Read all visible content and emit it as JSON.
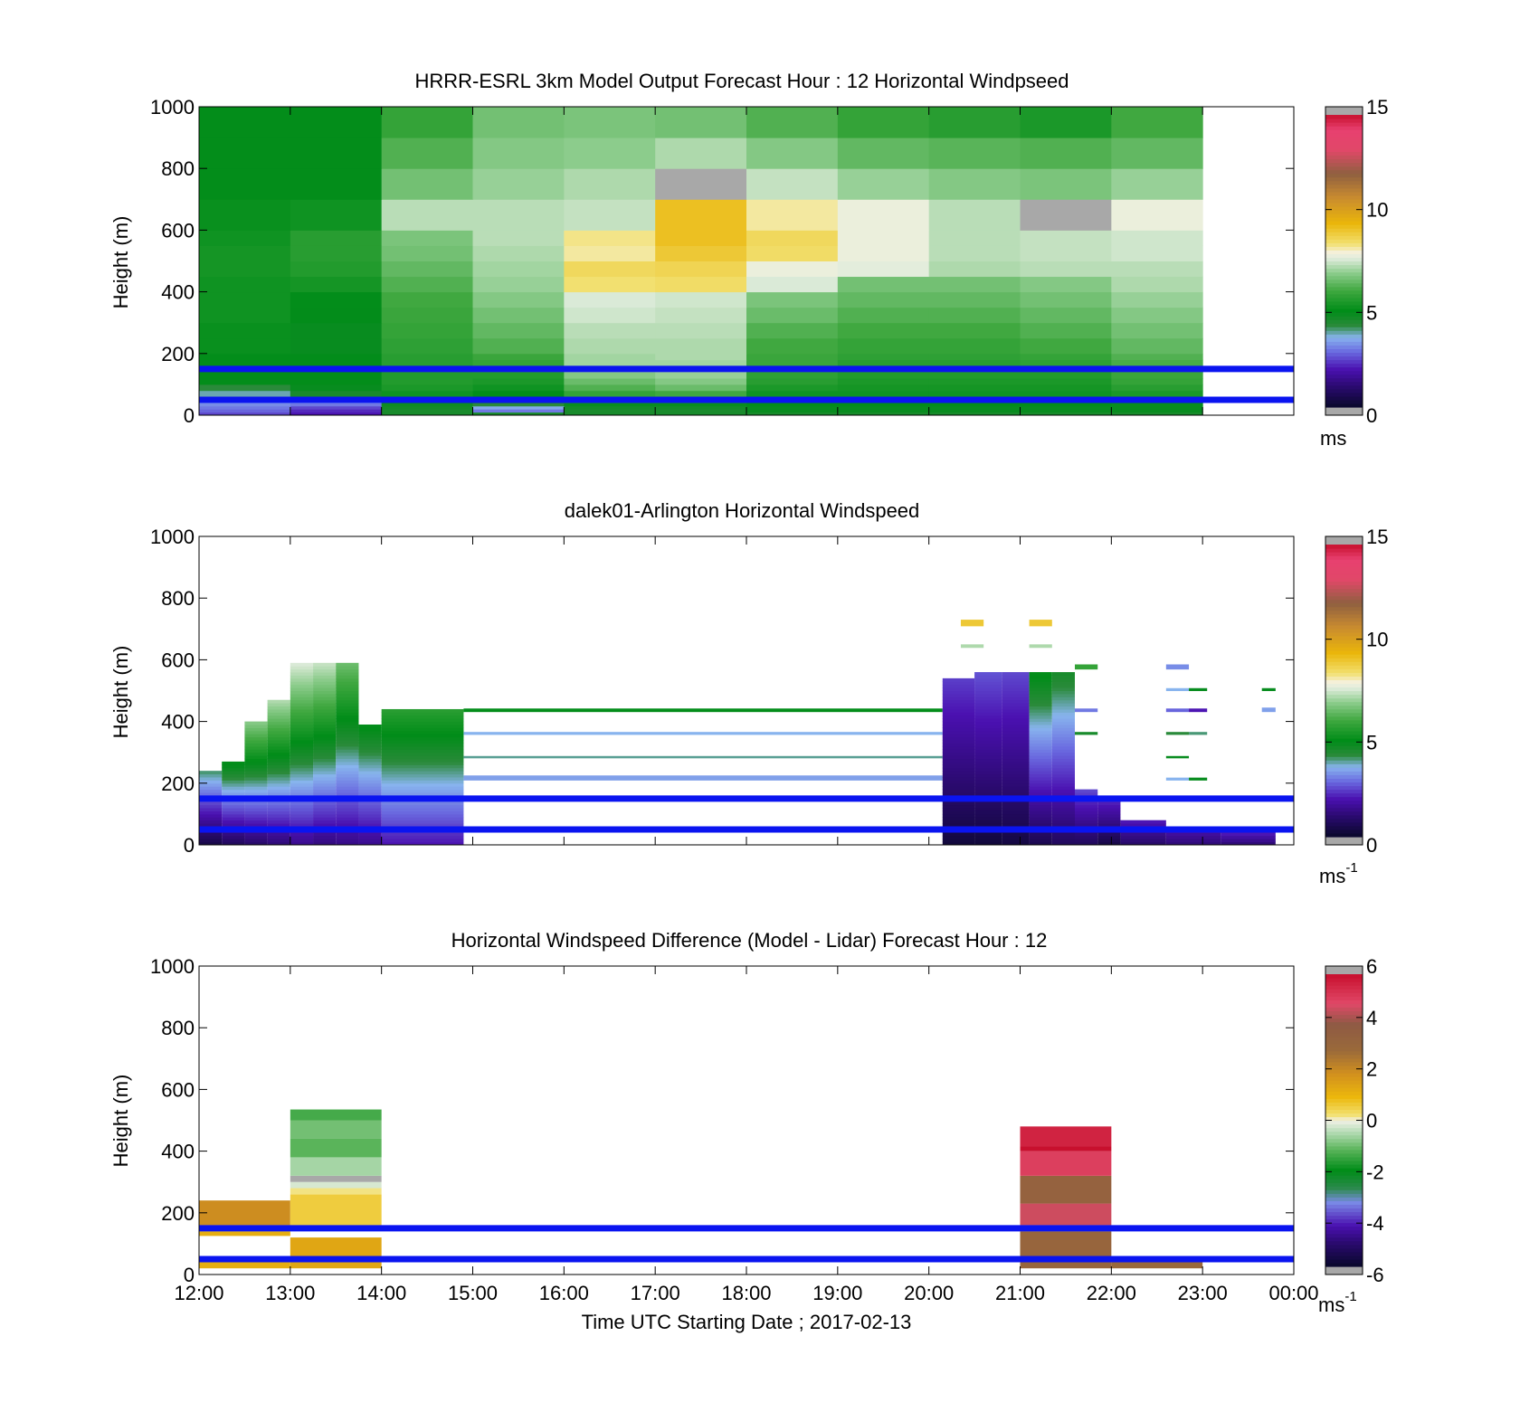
{
  "figure": {
    "xlabel": "Time UTC  Starting Date ; 2017-02-13"
  },
  "chart_data": [
    {
      "type": "heatmap",
      "title": "HRRR-ESRL 3km Model Output   Forecast Hour : 12 Horizontal Windpseed",
      "xlabel": "",
      "ylabel": "Height (m)",
      "xlim": [
        "12:00",
        "00:00"
      ],
      "ylim": [
        0,
        1000
      ],
      "yticks": [
        0,
        200,
        400,
        600,
        800,
        1000
      ],
      "colorbar": {
        "ticks": [
          0,
          5,
          10,
          15
        ],
        "range": [
          0,
          15
        ],
        "unit": "ms",
        "unit_sup": "",
        "palette": "wind"
      },
      "reference_lines_m": [
        50,
        150
      ],
      "line_color": "#0a14f0",
      "x_hours": [
        12,
        13,
        14,
        15,
        16,
        17,
        18,
        19,
        20,
        21,
        22
      ],
      "bin_top_m": [
        10,
        20,
        30,
        40,
        60,
        80,
        100,
        120,
        140,
        160,
        180,
        200,
        250,
        300,
        350,
        400,
        450,
        500,
        550,
        600,
        700,
        800,
        900,
        1000
      ],
      "values": [
        [
          2.5,
          2.0,
          4.5,
          4.5,
          4.5,
          4.5,
          4.5,
          4.5,
          4.5,
          4.5,
          4.5
        ],
        [
          2.8,
          2.2,
          4.5,
          3.0,
          4.5,
          4.5,
          4.8,
          4.8,
          4.8,
          4.8,
          4.8
        ],
        [
          3.0,
          2.5,
          4.6,
          3.5,
          4.6,
          4.6,
          4.8,
          4.8,
          4.8,
          4.8,
          4.8
        ],
        [
          3.2,
          3.0,
          4.7,
          4.2,
          4.8,
          4.8,
          4.9,
          4.9,
          4.9,
          4.9,
          4.8
        ],
        [
          3.5,
          3.6,
          4.9,
          4.5,
          5.3,
          5.3,
          5.0,
          5.0,
          5.0,
          5.0,
          5.0
        ],
        [
          3.8,
          4.5,
          5.2,
          5.0,
          5.8,
          6.0,
          5.2,
          5.2,
          5.2,
          5.2,
          5.4
        ],
        [
          4.2,
          4.8,
          5.4,
          5.2,
          6.2,
          6.5,
          5.4,
          5.3,
          5.3,
          5.3,
          5.6
        ],
        [
          5.0,
          5.0,
          5.5,
          5.4,
          6.5,
          6.8,
          5.6,
          5.4,
          5.4,
          5.4,
          5.8
        ],
        [
          5.0,
          5.0,
          5.5,
          5.5,
          6.8,
          7.0,
          5.7,
          5.5,
          5.5,
          5.5,
          5.9
        ],
        [
          5.0,
          5.0,
          5.6,
          5.7,
          7.0,
          7.1,
          5.8,
          5.6,
          5.6,
          5.6,
          6.0
        ],
        [
          5.0,
          4.9,
          5.6,
          5.8,
          7.1,
          7.1,
          5.9,
          5.6,
          5.6,
          5.7,
          6.1
        ],
        [
          5.0,
          4.9,
          5.6,
          5.9,
          7.1,
          7.2,
          5.9,
          5.7,
          5.7,
          5.8,
          6.2
        ],
        [
          5.1,
          4.8,
          5.7,
          6.2,
          7.2,
          7.2,
          6.0,
          5.8,
          5.8,
          6.0,
          6.4
        ],
        [
          5.1,
          4.8,
          5.8,
          6.4,
          7.3,
          7.3,
          6.2,
          6.0,
          6.0,
          6.2,
          6.6
        ],
        [
          5.2,
          4.9,
          5.9,
          6.6,
          7.5,
          7.4,
          6.5,
          6.2,
          6.2,
          6.4,
          6.8
        ],
        [
          5.2,
          5.0,
          6.0,
          6.8,
          7.6,
          7.5,
          6.7,
          6.4,
          6.4,
          6.6,
          7.0
        ],
        [
          5.2,
          5.3,
          6.2,
          7.0,
          8.4,
          8.5,
          7.6,
          6.6,
          6.6,
          6.8,
          7.2
        ],
        [
          5.3,
          5.5,
          6.4,
          7.1,
          8.6,
          8.7,
          7.8,
          7.7,
          7.2,
          7.3,
          7.3
        ],
        [
          5.3,
          5.6,
          6.6,
          7.2,
          8.2,
          9.0,
          8.5,
          7.8,
          7.3,
          7.4,
          7.5
        ],
        [
          5.2,
          5.6,
          6.7,
          7.3,
          8.3,
          9.2,
          8.6,
          7.8,
          7.3,
          7.4,
          7.5
        ],
        [
          5.1,
          5.2,
          7.3,
          7.3,
          7.4,
          9.2,
          8.2,
          7.8,
          7.3,
          15.5,
          7.8
        ],
        [
          5.0,
          5.0,
          6.6,
          7.0,
          7.2,
          15.5,
          7.4,
          7.0,
          6.8,
          6.7,
          7.0
        ],
        [
          5.0,
          5.0,
          6.2,
          6.8,
          6.9,
          7.2,
          6.8,
          6.4,
          6.3,
          6.2,
          6.4
        ],
        [
          5.0,
          5.0,
          5.8,
          6.6,
          6.7,
          6.6,
          6.2,
          5.8,
          5.6,
          5.4,
          6.0
        ]
      ]
    },
    {
      "type": "heatmap",
      "title": "dalek01-Arlington  Horizontal Windspeed",
      "xlabel": "",
      "ylabel": "Height (m)",
      "xlim": [
        "12:00",
        "00:00"
      ],
      "ylim": [
        0,
        1000
      ],
      "yticks": [
        0,
        200,
        400,
        600,
        800,
        1000
      ],
      "colorbar": {
        "ticks": [
          0,
          5,
          10,
          15
        ],
        "range": [
          0,
          15
        ],
        "unit": "ms",
        "unit_sup": "-1",
        "palette": "wind"
      },
      "reference_lines_m": [
        50,
        150
      ],
      "line_color": "#0a14f0",
      "observations": [
        {
          "t": [
            12.0,
            12.25
          ],
          "z": [
            0,
            240
          ],
          "v": [
            0.5,
            4.0
          ]
        },
        {
          "t": [
            12.25,
            12.5
          ],
          "z": [
            0,
            270
          ],
          "v": [
            0.8,
            5.0
          ]
        },
        {
          "t": [
            12.5,
            12.75
          ],
          "z": [
            0,
            400
          ],
          "v": [
            1.0,
            6.8
          ]
        },
        {
          "t": [
            12.75,
            13.0
          ],
          "z": [
            0,
            470
          ],
          "v": [
            1.2,
            7.2
          ]
        },
        {
          "t": [
            13.0,
            13.25
          ],
          "z": [
            0,
            590
          ],
          "v": [
            1.5,
            7.6
          ]
        },
        {
          "t": [
            13.25,
            13.5
          ],
          "z": [
            0,
            590
          ],
          "v": [
            1.3,
            7.4
          ]
        },
        {
          "t": [
            13.5,
            13.75
          ],
          "z": [
            0,
            590
          ],
          "v": [
            1.4,
            6.5
          ]
        },
        {
          "t": [
            13.75,
            14.0
          ],
          "z": [
            0,
            390
          ],
          "v": [
            1.5,
            5.0
          ]
        },
        {
          "t": [
            14.0,
            14.9
          ],
          "z": [
            0,
            440
          ],
          "v": [
            2.0,
            5.6
          ]
        },
        {
          "t": [
            14.9,
            20.15
          ],
          "z": [
            210,
            225
          ],
          "v": [
            3.4,
            3.4
          ]
        },
        {
          "t": [
            14.9,
            20.15
          ],
          "z": [
            282,
            288
          ],
          "v": [
            3.9,
            3.9
          ]
        },
        {
          "t": [
            14.9,
            20.15
          ],
          "z": [
            358,
            366
          ],
          "v": [
            3.6,
            3.6
          ]
        },
        {
          "t": [
            14.9,
            20.15
          ],
          "z": [
            432,
            442
          ],
          "v": [
            5.0,
            5.0
          ]
        },
        {
          "t": [
            20.15,
            20.5
          ],
          "z": [
            0,
            540
          ],
          "v": [
            0.3,
            2.4
          ]
        },
        {
          "t": [
            20.5,
            20.8
          ],
          "z": [
            0,
            560
          ],
          "v": [
            0.3,
            2.6
          ]
        },
        {
          "t": [
            20.8,
            21.1
          ],
          "z": [
            0,
            560
          ],
          "v": [
            0.4,
            2.5
          ]
        },
        {
          "t": [
            21.1,
            21.35
          ],
          "z": [
            0,
            560
          ],
          "v": [
            0.6,
            5.0
          ]
        },
        {
          "t": [
            21.35,
            21.6
          ],
          "z": [
            0,
            560
          ],
          "v": [
            0.8,
            4.5
          ]
        },
        {
          "t": [
            21.6,
            21.85
          ],
          "z": [
            0,
            180
          ],
          "v": [
            0.8,
            2.5
          ]
        },
        {
          "t": [
            21.85,
            22.1
          ],
          "z": [
            0,
            150
          ],
          "v": [
            0.5,
            2.2
          ]
        },
        {
          "t": [
            22.1,
            22.6
          ],
          "z": [
            0,
            80
          ],
          "v": [
            1.0,
            2.0
          ]
        },
        {
          "t": [
            22.6,
            23.2
          ],
          "z": [
            0,
            60
          ],
          "v": [
            1.2,
            2.0
          ]
        },
        {
          "t": [
            23.2,
            23.8
          ],
          "z": [
            0,
            40
          ],
          "v": [
            1.2,
            2.0
          ]
        },
        {
          "t": [
            20.35,
            20.6
          ],
          "z": [
            710,
            730
          ],
          "v": [
            9.0,
            9.0
          ]
        },
        {
          "t": [
            21.1,
            21.35
          ],
          "z": [
            710,
            730
          ],
          "v": [
            9.0,
            9.0
          ]
        },
        {
          "t": [
            20.35,
            20.6
          ],
          "z": [
            640,
            650
          ],
          "v": [
            7.2,
            7.2
          ]
        },
        {
          "t": [
            21.1,
            21.35
          ],
          "z": [
            640,
            650
          ],
          "v": [
            7.2,
            7.2
          ]
        },
        {
          "t": [
            22.6,
            22.85
          ],
          "z": [
            570,
            585
          ],
          "v": [
            3.2,
            3.2
          ]
        },
        {
          "t": [
            22.6,
            22.85
          ],
          "z": [
            432,
            442
          ],
          "v": [
            2.8,
            2.8
          ]
        },
        {
          "t": [
            22.6,
            22.85
          ],
          "z": [
            500,
            508
          ],
          "v": [
            3.6,
            3.6
          ]
        },
        {
          "t": [
            22.85,
            23.05
          ],
          "z": [
            432,
            442
          ],
          "v": [
            2.0,
            2.0
          ]
        },
        {
          "t": [
            22.85,
            23.05
          ],
          "z": [
            500,
            508
          ],
          "v": [
            4.8,
            4.8
          ]
        },
        {
          "t": [
            22.6,
            22.85
          ],
          "z": [
            282,
            288
          ],
          "v": [
            4.8,
            4.8
          ]
        },
        {
          "t": [
            22.6,
            22.85
          ],
          "z": [
            210,
            218
          ],
          "v": [
            3.6,
            3.6
          ]
        },
        {
          "t": [
            22.85,
            23.05
          ],
          "z": [
            210,
            218
          ],
          "v": [
            4.8,
            4.8
          ]
        },
        {
          "t": [
            22.6,
            22.85
          ],
          "z": [
            358,
            366
          ],
          "v": [
            4.2,
            4.2
          ]
        },
        {
          "t": [
            22.85,
            23.05
          ],
          "z": [
            358,
            366
          ],
          "v": [
            4.0,
            4.0
          ]
        },
        {
          "t": [
            23.65,
            23.8
          ],
          "z": [
            500,
            508
          ],
          "v": [
            4.8,
            4.8
          ]
        },
        {
          "t": [
            23.65,
            23.8
          ],
          "z": [
            432,
            445
          ],
          "v": [
            3.4,
            3.4
          ]
        },
        {
          "t": [
            21.6,
            21.85
          ],
          "z": [
            570,
            585
          ],
          "v": [
            5.8,
            5.8
          ]
        },
        {
          "t": [
            21.6,
            21.85
          ],
          "z": [
            432,
            442
          ],
          "v": [
            3.0,
            3.0
          ]
        },
        {
          "t": [
            21.6,
            21.85
          ],
          "z": [
            358,
            366
          ],
          "v": [
            4.5,
            4.5
          ]
        }
      ]
    },
    {
      "type": "heatmap",
      "title": "Horizontal Windspeed Difference (Model - Lidar) Forecast Hour : 12",
      "xlabel": "Time UTC  Starting Date ; 2017-02-13",
      "ylabel": "Height (m)",
      "xlim": [
        "12:00",
        "00:00"
      ],
      "ylim": [
        0,
        1000
      ],
      "yticks": [
        0,
        200,
        400,
        600,
        800,
        1000
      ],
      "xticks": [
        "12:00",
        "13:00",
        "14:00",
        "15:00",
        "16:00",
        "17:00",
        "18:00",
        "19:00",
        "20:00",
        "21:00",
        "22:00",
        "23:00",
        "00:00"
      ],
      "colorbar": {
        "ticks": [
          -6,
          -4,
          -2,
          0,
          2,
          4,
          6
        ],
        "range": [
          -6,
          6
        ],
        "unit": "ms",
        "unit_sup": "-1",
        "palette": "diff"
      },
      "reference_lines_m": [
        50,
        150
      ],
      "line_color": "#0a14f0",
      "differences": [
        {
          "t": [
            12.0,
            13.0
          ],
          "z": [
            20,
            40
          ],
          "v": 1.2
        },
        {
          "t": [
            12.0,
            13.0
          ],
          "z": [
            125,
            140
          ],
          "v": 1.2
        },
        {
          "t": [
            12.0,
            13.0
          ],
          "z": [
            160,
            240
          ],
          "v": 2.0
        },
        {
          "t": [
            13.0,
            14.0
          ],
          "z": [
            20,
            120
          ],
          "v": 1.4
        },
        {
          "t": [
            13.0,
            14.0
          ],
          "z": [
            160,
            260
          ],
          "v": 0.6
        },
        {
          "t": [
            13.0,
            14.0
          ],
          "z": [
            260,
            280
          ],
          "v": 0.2
        },
        {
          "t": [
            13.0,
            14.0
          ],
          "z": [
            280,
            300
          ],
          "v": -0.2
        },
        {
          "t": [
            13.0,
            14.0
          ],
          "z": [
            300,
            320
          ],
          "v": -6.5
        },
        {
          "t": [
            13.0,
            14.0
          ],
          "z": [
            320,
            380
          ],
          "v": -0.6
        },
        {
          "t": [
            13.0,
            14.0
          ],
          "z": [
            380,
            440
          ],
          "v": -1.2
        },
        {
          "t": [
            13.0,
            14.0
          ],
          "z": [
            440,
            500
          ],
          "v": -1.0
        },
        {
          "t": [
            13.0,
            14.0
          ],
          "z": [
            500,
            535
          ],
          "v": -1.4
        },
        {
          "t": [
            21.0,
            22.0
          ],
          "z": [
            20,
            140
          ],
          "v": 3.2
        },
        {
          "t": [
            21.0,
            22.0
          ],
          "z": [
            160,
            230
          ],
          "v": 4.6
        },
        {
          "t": [
            21.0,
            22.0
          ],
          "z": [
            230,
            320
          ],
          "v": 3.4
        },
        {
          "t": [
            21.0,
            22.0
          ],
          "z": [
            320,
            400
          ],
          "v": 5.0
        },
        {
          "t": [
            21.0,
            22.0
          ],
          "z": [
            400,
            415
          ],
          "v": 6.0
        },
        {
          "t": [
            21.0,
            22.0
          ],
          "z": [
            415,
            480
          ],
          "v": 5.6
        },
        {
          "t": [
            22.0,
            23.0
          ],
          "z": [
            20,
            40
          ],
          "v": 3.0
        }
      ]
    }
  ]
}
